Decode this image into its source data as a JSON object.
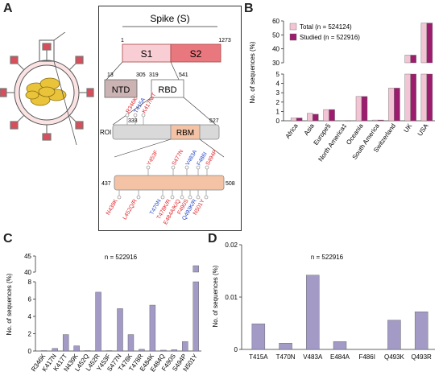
{
  "panels": {
    "A": "A",
    "B": "B",
    "C": "C",
    "D": "D"
  },
  "colors": {
    "total": "#f2c4d4",
    "studied": "#9c1c6e",
    "bar": "#a39bc6",
    "s1": "#f8cdd3",
    "s2": "#e9777e",
    "ntd": "#cbb3b3",
    "rbm": "#f4c3a6",
    "red": "#e0252a",
    "blue": "#2445c8",
    "box_gray": "#d9d9d9"
  },
  "spike": {
    "title": "Spike (S)",
    "s1": "S1",
    "s2": "S2",
    "pos_1": "1",
    "pos_1273": "1273",
    "pos_13": "13",
    "pos_305": "305",
    "pos_319": "319",
    "pos_541": "541",
    "ntd": "NTD",
    "rbd": "RBD",
    "pos_333": "333",
    "pos_527": "527",
    "roi": "ROI",
    "rbm": "RBM",
    "pos_437": "437",
    "pos_508": "508",
    "roi_muts": [
      {
        "text": "R346K",
        "color": "red"
      },
      {
        "text": "T415A",
        "color": "blue"
      },
      {
        "text": "K417N/T",
        "color": "red"
      }
    ],
    "rbm_muts_top": [
      {
        "text": "Y453F",
        "color": "red"
      },
      {
        "text": "S477N",
        "color": "red"
      },
      {
        "text": "V483A",
        "color": "blue"
      },
      {
        "text": "F486I",
        "color": "blue"
      },
      {
        "text": "S494P",
        "color": "red"
      }
    ],
    "rbm_muts_bottom": [
      {
        "text": "N439K",
        "color": "red"
      },
      {
        "text": "L452Q/R",
        "color": "red"
      },
      {
        "text": "T470N",
        "color": "blue"
      },
      {
        "text": "T478K/R",
        "color": "red"
      },
      {
        "text": "E484A/K/Q",
        "color": "red"
      },
      {
        "text": "F490S",
        "color": "red"
      },
      {
        "text": "Q493K/R",
        "color": "blue"
      },
      {
        "text": "N501Y",
        "color": "red"
      }
    ]
  },
  "chart_data": [
    {
      "panel": "B",
      "type": "bar",
      "ylabel": "No. of sequences (%)",
      "broken_axis": true,
      "lower_ylim": [
        0,
        5
      ],
      "upper_ylim": [
        30,
        60
      ],
      "lower_ticks": [
        "0",
        "1",
        "2",
        "3",
        "4",
        "5"
      ],
      "upper_ticks": [
        "30",
        "40",
        "50",
        "60"
      ],
      "categories": [
        "Africa",
        "Asia",
        "Europe§",
        "North America‡",
        "Oceania",
        "South America",
        "Switzerland",
        "UK",
        "USA"
      ],
      "legend": "top-left",
      "series": [
        {
          "name": "Total (n = 524124)",
          "values": [
            0.3,
            0.8,
            1.2,
            0.02,
            2.6,
            0.08,
            3.5,
            35.5,
            58.5
          ]
        },
        {
          "name": "Studied (n = 522916)",
          "values": [
            0.3,
            0.7,
            1.2,
            0.02,
            2.6,
            0.08,
            3.5,
            35.5,
            58.5
          ]
        }
      ]
    },
    {
      "panel": "C",
      "type": "bar",
      "annotation": "n = 522916",
      "ylabel": "No. of sequences (%)",
      "broken_axis": true,
      "lower_ylim": [
        0,
        8
      ],
      "upper_ylim": [
        40,
        45
      ],
      "lower_ticks": [
        "0",
        "2",
        "4",
        "6",
        "8"
      ],
      "upper_ticks": [
        "40",
        "45"
      ],
      "categories": [
        "R346K",
        "K417N",
        "K417T",
        "N439K",
        "L452Q",
        "L452R",
        "Y453F",
        "S477N",
        "T478K",
        "T478R",
        "E484K",
        "E484Q",
        "F490S",
        "S494P",
        "N501Y"
      ],
      "values": [
        0.05,
        0.3,
        1.9,
        0.6,
        0.05,
        6.8,
        0.05,
        4.9,
        1.9,
        0.2,
        5.3,
        0.1,
        0.15,
        1.1,
        42.0
      ]
    },
    {
      "panel": "D",
      "type": "bar",
      "annotation": "n = 522916",
      "ylabel": "No. of sequences (%)",
      "ylim": [
        0,
        0.02
      ],
      "ticks": [
        "0",
        "0.01",
        "0.02"
      ],
      "categories": [
        "T415A",
        "T470N",
        "V483A",
        "E484A",
        "F486I",
        "Q493K",
        "Q493R"
      ],
      "values": [
        0.0049,
        0.0012,
        0.0142,
        0.0015,
        0,
        0.0056,
        0.0072
      ]
    }
  ]
}
